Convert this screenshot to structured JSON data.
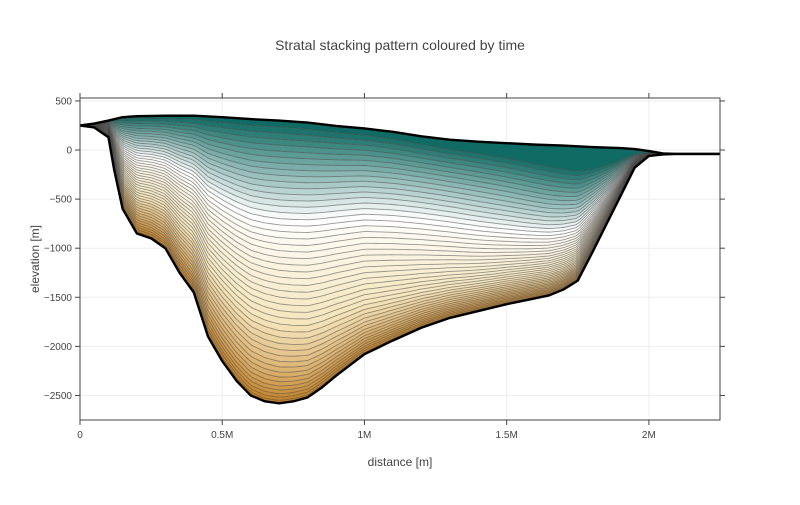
{
  "chart_data": {
    "type": "area",
    "title": "Stratal stacking pattern coloured by time",
    "xlabel": "distance [m]",
    "ylabel": "elevation [m]",
    "xlim": [
      0,
      2250000
    ],
    "ylim": [
      -2750,
      530
    ],
    "x_ticks": [
      {
        "value": 0,
        "label": "0"
      },
      {
        "value": 500000,
        "label": "0.5M"
      },
      {
        "value": 1000000,
        "label": "1M"
      },
      {
        "value": 1500000,
        "label": "1.5M"
      },
      {
        "value": 2000000,
        "label": "2M"
      }
    ],
    "y_ticks": [
      {
        "value": 500,
        "label": "500"
      },
      {
        "value": 0,
        "label": "0"
      },
      {
        "value": -500,
        "label": "−500"
      },
      {
        "value": -1000,
        "label": "−1000"
      },
      {
        "value": -1500,
        "label": "−1500"
      },
      {
        "value": -2000,
        "label": "−2000"
      },
      {
        "value": -2500,
        "label": "−2500"
      }
    ],
    "grid": true,
    "colorscale": [
      "#c27e22",
      "#f5e5bc",
      "#ffffff",
      "#0f6b63"
    ],
    "layer_count": 48,
    "basement": {
      "x": [
        0,
        50000,
        100000,
        120000,
        150000,
        200000,
        250000,
        300000,
        350000,
        400000,
        450000,
        500000,
        550000,
        600000,
        650000,
        700000,
        750000,
        800000,
        850000,
        900000,
        1000000,
        1100000,
        1200000,
        1300000,
        1400000,
        1500000,
        1600000,
        1650000,
        1700000,
        1750000,
        1800000,
        1850000,
        1900000,
        1950000,
        2000000,
        2050000,
        2100000,
        2150000,
        2200000,
        2250000
      ],
      "y": [
        250,
        230,
        130,
        -200,
        -600,
        -850,
        -900,
        -1000,
        -1250,
        -1450,
        -1900,
        -2150,
        -2350,
        -2500,
        -2560,
        -2580,
        -2560,
        -2520,
        -2420,
        -2300,
        -2080,
        -1940,
        -1810,
        -1710,
        -1640,
        -1570,
        -1510,
        -1480,
        -1420,
        -1330,
        -1050,
        -760,
        -470,
        -180,
        -60,
        -45,
        -40,
        -40,
        -40,
        -40
      ]
    },
    "final_surface": {
      "x": [
        0,
        50000,
        100000,
        150000,
        200000,
        300000,
        400000,
        500000,
        600000,
        700000,
        800000,
        900000,
        1000000,
        1100000,
        1200000,
        1300000,
        1400000,
        1500000,
        1600000,
        1700000,
        1800000,
        1900000,
        1950000,
        2000000,
        2050000,
        2100000,
        2150000,
        2200000,
        2250000
      ],
      "y": [
        250,
        270,
        300,
        335,
        345,
        350,
        350,
        335,
        315,
        300,
        280,
        245,
        220,
        185,
        140,
        105,
        85,
        70,
        55,
        45,
        30,
        20,
        10,
        -10,
        -35,
        -40,
        -40,
        -40,
        -40
      ]
    },
    "sea_level": 0
  }
}
